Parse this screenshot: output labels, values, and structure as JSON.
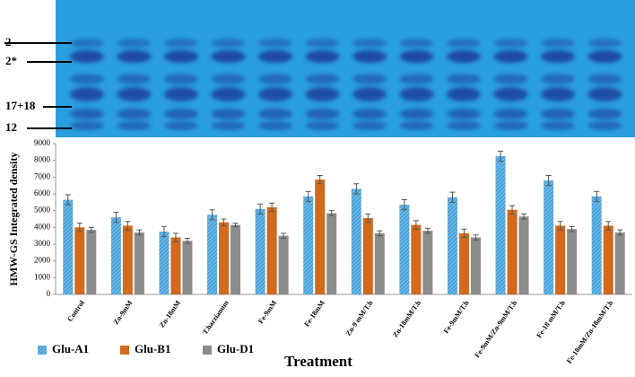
{
  "gel": {
    "band_labels": [
      "2",
      "2*",
      "17+18",
      "12"
    ]
  },
  "chart_data": {
    "type": "bar",
    "y_label": "HMW-GS Integrated density",
    "x_label": "Treatment",
    "categories": [
      "Control",
      "Zn-9mM",
      "Zn-18mM",
      "T.harzianum",
      "Fe-9mM",
      "Fe-18mM",
      "Zn-9 mM/T.h",
      "Zn-18mM/T.h",
      "Fe-9mM/T.h",
      "Fe-9mM/Zn-9mM/T.h",
      "Fe-18 mM/T.h",
      "Fe-18mM/Zn-18mM/T.h"
    ],
    "series": [
      {
        "name": "Glu-A1",
        "color": "#4aa3dc",
        "hatch": true,
        "values": [
          5650,
          4600,
          3750,
          4750,
          5100,
          5850,
          6300,
          5350,
          5800,
          8250,
          6800,
          5850
        ],
        "errors": [
          300,
          300,
          300,
          300,
          300,
          300,
          300,
          300,
          300,
          300,
          300,
          300
        ]
      },
      {
        "name": "Glu-B1",
        "color": "#d2691e",
        "hatch": false,
        "values": [
          4000,
          4100,
          3400,
          4300,
          5200,
          6850,
          4550,
          4150,
          3650,
          5050,
          4100,
          4100
        ],
        "errors": [
          250,
          250,
          250,
          200,
          250,
          250,
          250,
          250,
          250,
          250,
          250,
          250
        ]
      },
      {
        "name": "Glu-D1",
        "color": "#8c8c8c",
        "hatch": false,
        "values": [
          3850,
          3700,
          3200,
          4150,
          3500,
          4850,
          3650,
          3800,
          3400,
          4650,
          3900,
          3700
        ],
        "errors": [
          150,
          150,
          150,
          100,
          150,
          150,
          150,
          150,
          150,
          150,
          150,
          150
        ]
      }
    ],
    "ylim": [
      0,
      9000
    ],
    "yticks": [
      0,
      1000,
      2000,
      3000,
      4000,
      5000,
      6000,
      7000,
      8000,
      9000
    ],
    "grid": false,
    "legend": "bottom"
  }
}
